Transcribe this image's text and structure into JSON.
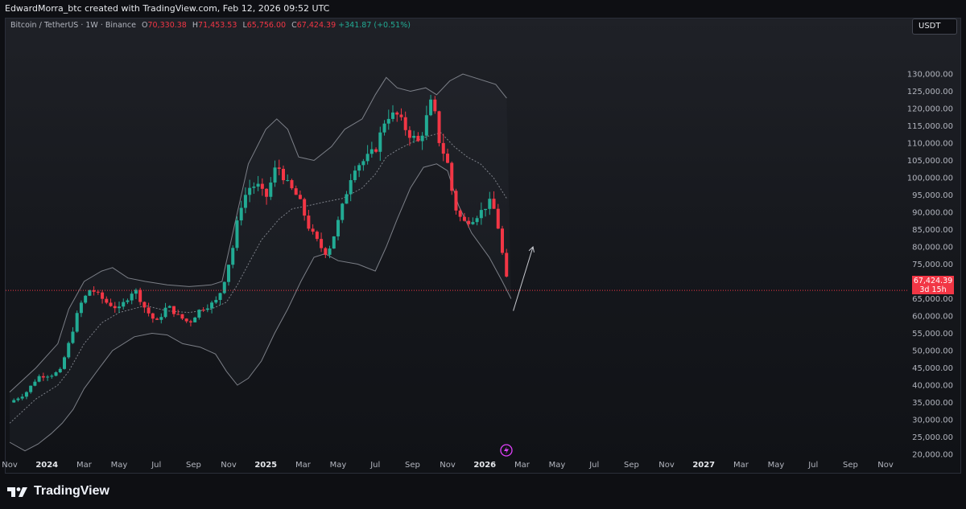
{
  "header": {
    "text": "EdwardMorra_btc created with TradingView.com, Feb 12, 2026 09:52 UTC"
  },
  "legend": {
    "symbol": "Bitcoin / TetherUS · 1W · Binance",
    "o_label": "O",
    "o": "70,330.38",
    "h_label": "H",
    "h": "71,453.53",
    "l_label": "L",
    "l": "65,756.00",
    "c_label": "C",
    "c": "67,424.39",
    "change": "+341.87 (+0.51%)"
  },
  "currency": "USDT",
  "price_tag": {
    "price": "67,424.39",
    "countdown": "3d 15h"
  },
  "branding": {
    "name": "TradingView"
  },
  "colors": {
    "up": "#22ab94",
    "down": "#f23645",
    "band": "#9598a1",
    "axis_text": "#b2b5be",
    "current_line": "#f23645"
  },
  "chart_data": {
    "type": "candlestick",
    "timeframe": "1W",
    "ylim": [
      20000,
      135000
    ],
    "y_ticks": [
      "130,000.00",
      "125,000.00",
      "120,000.00",
      "115,000.00",
      "110,000.00",
      "105,000.00",
      "100,000.00",
      "95,000.00",
      "90,000.00",
      "85,000.00",
      "80,000.00",
      "75,000.00",
      "70,000.00",
      "65,000.00",
      "60,000.00",
      "55,000.00",
      "50,000.00",
      "45,000.00",
      "40,000.00",
      "35,000.00",
      "30,000.00",
      "25,000.00",
      "20,000.00"
    ],
    "x_ticks": [
      {
        "label": "Nov",
        "t": 2023.83
      },
      {
        "label": "2024",
        "t": 2024.0
      },
      {
        "label": "Mar",
        "t": 2024.17
      },
      {
        "label": "May",
        "t": 2024.33
      },
      {
        "label": "Jul",
        "t": 2024.5
      },
      {
        "label": "Sep",
        "t": 2024.67
      },
      {
        "label": "Nov",
        "t": 2024.83
      },
      {
        "label": "2025",
        "t": 2025.0
      },
      {
        "label": "Mar",
        "t": 2025.17
      },
      {
        "label": "May",
        "t": 2025.33
      },
      {
        "label": "Jul",
        "t": 2025.5
      },
      {
        "label": "Sep",
        "t": 2025.67
      },
      {
        "label": "Nov",
        "t": 2025.83
      },
      {
        "label": "2026",
        "t": 2026.0
      },
      {
        "label": "Mar",
        "t": 2026.17
      },
      {
        "label": "May",
        "t": 2026.33
      },
      {
        "label": "Jul",
        "t": 2026.5
      },
      {
        "label": "Sep",
        "t": 2026.67
      },
      {
        "label": "Nov",
        "t": 2026.83
      },
      {
        "label": "2027",
        "t": 2027.0
      },
      {
        "label": "Mar",
        "t": 2027.17
      },
      {
        "label": "May",
        "t": 2027.33
      },
      {
        "label": "Jul",
        "t": 2027.5
      },
      {
        "label": "Sep",
        "t": 2027.67
      },
      {
        "label": "Nov",
        "t": 2027.83
      }
    ],
    "price_path": [
      [
        2023.83,
        35000
      ],
      [
        2023.9,
        37500
      ],
      [
        2023.96,
        42500
      ],
      [
        2024.02,
        43000
      ],
      [
        2024.06,
        44000
      ],
      [
        2024.1,
        52000
      ],
      [
        2024.15,
        63000
      ],
      [
        2024.2,
        68000
      ],
      [
        2024.27,
        64000
      ],
      [
        2024.33,
        62000
      ],
      [
        2024.4,
        68000
      ],
      [
        2024.45,
        62000
      ],
      [
        2024.5,
        58000
      ],
      [
        2024.55,
        63000
      ],
      [
        2024.6,
        60000
      ],
      [
        2024.65,
        58000
      ],
      [
        2024.7,
        62000
      ],
      [
        2024.77,
        64000
      ],
      [
        2024.8,
        68000
      ],
      [
        2024.85,
        80000
      ],
      [
        2024.88,
        91000
      ],
      [
        2024.92,
        97000
      ],
      [
        2024.96,
        98000
      ],
      [
        2025.0,
        94000
      ],
      [
        2025.05,
        104000
      ],
      [
        2025.1,
        98000
      ],
      [
        2025.15,
        94000
      ],
      [
        2025.2,
        85000
      ],
      [
        2025.25,
        80000
      ],
      [
        2025.28,
        78000
      ],
      [
        2025.32,
        85000
      ],
      [
        2025.36,
        94000
      ],
      [
        2025.4,
        103000
      ],
      [
        2025.45,
        105000
      ],
      [
        2025.5,
        108000
      ],
      [
        2025.55,
        118000
      ],
      [
        2025.6,
        118000
      ],
      [
        2025.65,
        113000
      ],
      [
        2025.7,
        110000
      ],
      [
        2025.76,
        123000
      ],
      [
        2025.79,
        111000
      ],
      [
        2025.83,
        104000
      ],
      [
        2025.86,
        92000
      ],
      [
        2025.9,
        87000
      ],
      [
        2025.94,
        88000
      ],
      [
        2025.98,
        90000
      ],
      [
        2026.02,
        93000
      ],
      [
        2026.05,
        90000
      ],
      [
        2026.08,
        78000
      ],
      [
        2026.1,
        70330
      ],
      [
        2026.115,
        67424
      ]
    ],
    "bollinger_upper": [
      [
        2023.83,
        38000
      ],
      [
        2023.95,
        45000
      ],
      [
        2024.05,
        52000
      ],
      [
        2024.1,
        62000
      ],
      [
        2024.17,
        70000
      ],
      [
        2024.25,
        73000
      ],
      [
        2024.3,
        74000
      ],
      [
        2024.37,
        71000
      ],
      [
        2024.45,
        70000
      ],
      [
        2024.55,
        69000
      ],
      [
        2024.65,
        68500
      ],
      [
        2024.75,
        69000
      ],
      [
        2024.8,
        70000
      ],
      [
        2024.87,
        90000
      ],
      [
        2024.92,
        104000
      ],
      [
        2025.0,
        114000
      ],
      [
        2025.05,
        117000
      ],
      [
        2025.1,
        114000
      ],
      [
        2025.15,
        106000
      ],
      [
        2025.22,
        105000
      ],
      [
        2025.3,
        109000
      ],
      [
        2025.36,
        114000
      ],
      [
        2025.44,
        117000
      ],
      [
        2025.5,
        124000
      ],
      [
        2025.55,
        129000
      ],
      [
        2025.6,
        126000
      ],
      [
        2025.66,
        125000
      ],
      [
        2025.73,
        126000
      ],
      [
        2025.78,
        124000
      ],
      [
        2025.84,
        128000
      ],
      [
        2025.9,
        130000
      ],
      [
        2025.95,
        129000
      ],
      [
        2026.05,
        127000
      ],
      [
        2026.1,
        123000
      ]
    ],
    "bollinger_middle": [
      [
        2023.83,
        29000
      ],
      [
        2023.95,
        36000
      ],
      [
        2024.05,
        40000
      ],
      [
        2024.1,
        44000
      ],
      [
        2024.17,
        52000
      ],
      [
        2024.25,
        58000
      ],
      [
        2024.33,
        61000
      ],
      [
        2024.45,
        63000
      ],
      [
        2024.55,
        61500
      ],
      [
        2024.65,
        61000
      ],
      [
        2024.75,
        62000
      ],
      [
        2024.82,
        64000
      ],
      [
        2024.87,
        69000
      ],
      [
        2024.92,
        75000
      ],
      [
        2024.98,
        82000
      ],
      [
        2025.06,
        88000
      ],
      [
        2025.12,
        91000
      ],
      [
        2025.2,
        92000
      ],
      [
        2025.27,
        93000
      ],
      [
        2025.35,
        94000
      ],
      [
        2025.44,
        97000
      ],
      [
        2025.5,
        101000
      ],
      [
        2025.55,
        106000
      ],
      [
        2025.6,
        108000
      ],
      [
        2025.66,
        110000
      ],
      [
        2025.74,
        112000
      ],
      [
        2025.8,
        113000
      ],
      [
        2025.86,
        109000
      ],
      [
        2025.92,
        106000
      ],
      [
        2025.98,
        104000
      ],
      [
        2026.04,
        100000
      ],
      [
        2026.1,
        94000
      ]
    ],
    "bollinger_lower": [
      [
        2023.83,
        23500
      ],
      [
        2023.9,
        21000
      ],
      [
        2023.96,
        23000
      ],
      [
        2024.02,
        26000
      ],
      [
        2024.07,
        29000
      ],
      [
        2024.12,
        33000
      ],
      [
        2024.17,
        39000
      ],
      [
        2024.24,
        45000
      ],
      [
        2024.3,
        50000
      ],
      [
        2024.4,
        54000
      ],
      [
        2024.48,
        55000
      ],
      [
        2024.55,
        54500
      ],
      [
        2024.62,
        52000
      ],
      [
        2024.7,
        51000
      ],
      [
        2024.77,
        49000
      ],
      [
        2024.82,
        44000
      ],
      [
        2024.87,
        40000
      ],
      [
        2024.92,
        42000
      ],
      [
        2024.98,
        47000
      ],
      [
        2025.04,
        55000
      ],
      [
        2025.1,
        62000
      ],
      [
        2025.16,
        70000
      ],
      [
        2025.22,
        77000
      ],
      [
        2025.27,
        78000
      ],
      [
        2025.33,
        76000
      ],
      [
        2025.42,
        75000
      ],
      [
        2025.5,
        73000
      ],
      [
        2025.55,
        80000
      ],
      [
        2025.6,
        88000
      ],
      [
        2025.66,
        97000
      ],
      [
        2025.72,
        103000
      ],
      [
        2025.78,
        104000
      ],
      [
        2025.83,
        102000
      ],
      [
        2025.88,
        92000
      ],
      [
        2025.94,
        84000
      ],
      [
        2026.02,
        77000
      ],
      [
        2026.08,
        70000
      ],
      [
        2026.12,
        65000
      ]
    ],
    "arrow": {
      "from": [
        2026.13,
        61500
      ],
      "to": [
        2026.22,
        80000
      ]
    },
    "current_price": 67424.39
  }
}
